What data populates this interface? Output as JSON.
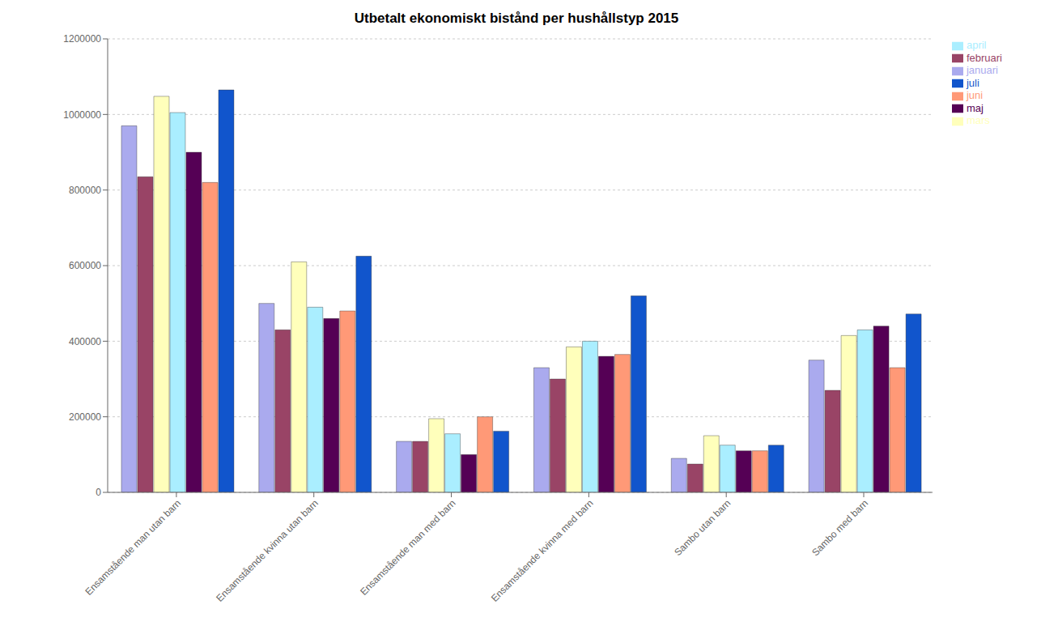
{
  "chart_data": {
    "type": "bar",
    "title": "Utbetalt ekonomiskt bistånd per hushållstyp 2015",
    "categories": [
      "Ensamstående man utan barn",
      "Ensamstående kvinna utan barn",
      "Ensamstående man med barn",
      "Ensamstående kvinna med barn",
      "Sambo utan barn",
      "Sambo med barn"
    ],
    "series": [
      {
        "name": "januari",
        "color": "#aaaaee",
        "values": [
          970000,
          500000,
          135000,
          330000,
          90000,
          350000
        ]
      },
      {
        "name": "februari",
        "color": "#994466",
        "values": [
          835000,
          430000,
          135000,
          300000,
          75000,
          270000
        ]
      },
      {
        "name": "mars",
        "color": "#ffffbb",
        "values": [
          1048000,
          610000,
          195000,
          385000,
          150000,
          415000
        ]
      },
      {
        "name": "april",
        "color": "#aaeeff",
        "values": [
          1005000,
          490000,
          155000,
          400000,
          125000,
          430000
        ]
      },
      {
        "name": "maj",
        "color": "#550055",
        "values": [
          900000,
          460000,
          100000,
          360000,
          110000,
          440000
        ]
      },
      {
        "name": "juni",
        "color": "#ff9977",
        "values": [
          820000,
          480000,
          200000,
          365000,
          110000,
          330000
        ]
      },
      {
        "name": "juli",
        "color": "#1155cc",
        "values": [
          1065000,
          625000,
          162000,
          520000,
          125000,
          472000
        ]
      }
    ],
    "ylim": [
      0,
      1200000
    ],
    "yticks": [
      0,
      200000,
      400000,
      600000,
      800000,
      1000000,
      1200000
    ],
    "grid": true,
    "legend": "right"
  }
}
